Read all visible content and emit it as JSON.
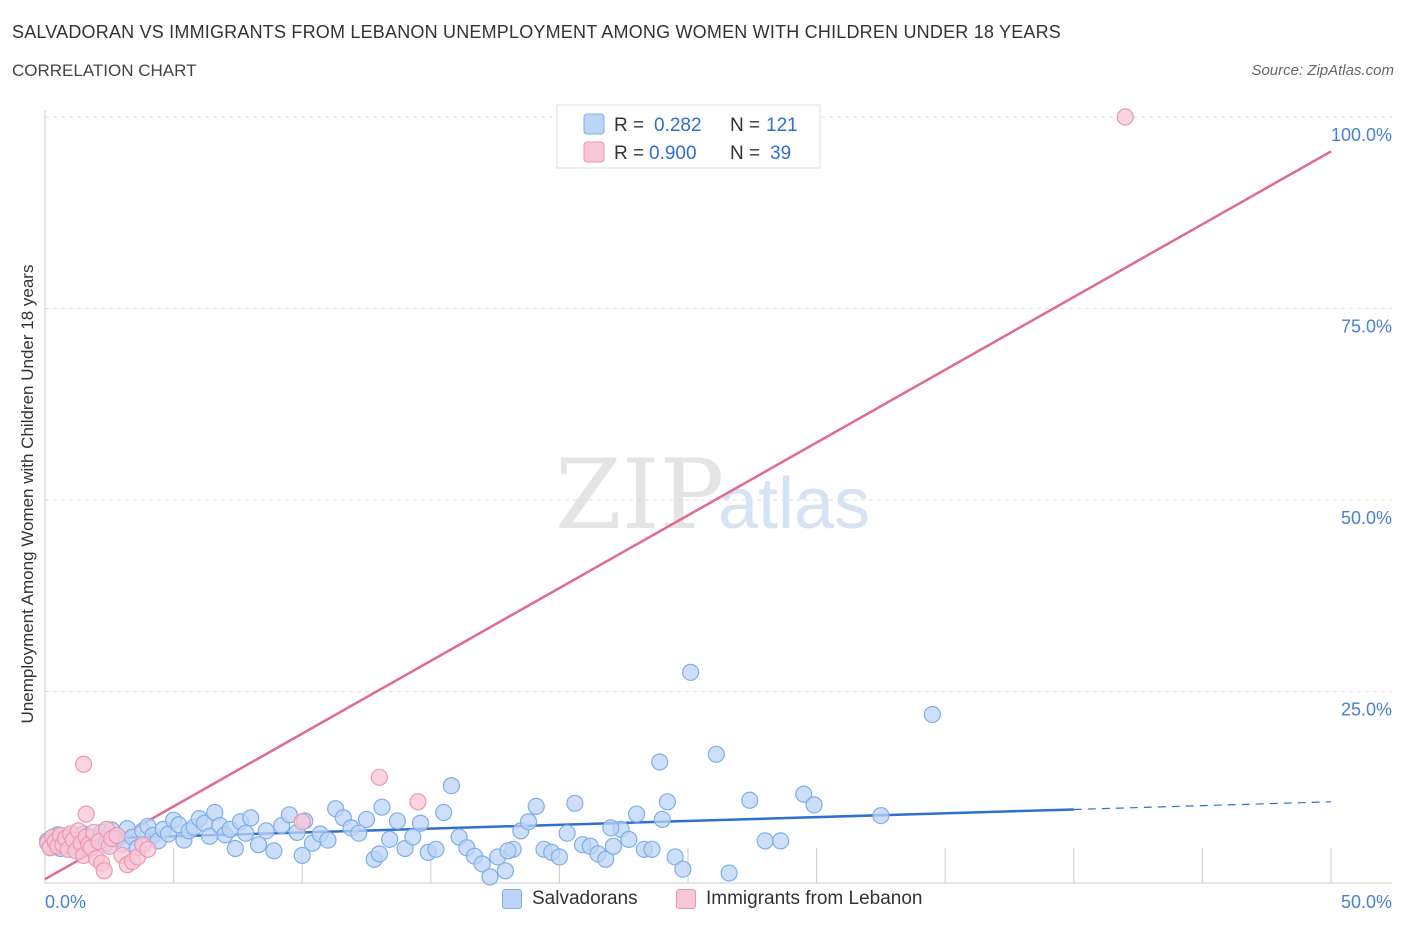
{
  "title": "SALVADORAN VS IMMIGRANTS FROM LEBANON UNEMPLOYMENT AMONG WOMEN WITH CHILDREN UNDER 18 YEARS",
  "subtitle": "CORRELATION CHART",
  "source": "Source: ZipAtlas.com",
  "watermark": {
    "zip": "ZIP",
    "atlas": "atlas"
  },
  "legend_top": [
    {
      "r_label": "R =",
      "r_value": "0.282",
      "n_label": "N =",
      "n_value": "121"
    },
    {
      "r_label": "R =",
      "r_value": "0.900",
      "n_label": "N =",
      "n_value": "39"
    }
  ],
  "legend_bottom": [
    "Salvadorans",
    "Immigrants from Lebanon"
  ],
  "colors": {
    "blue_fill": "#bcd4f5",
    "blue_stroke": "#7faee8",
    "blue_line": "#2f6fd0",
    "pink_fill": "#f8c6d6",
    "pink_stroke": "#eb97b4",
    "pink_line": "#e06a92",
    "tick_label": "#4a80d0",
    "grid": "#dddddd"
  },
  "chart_data": {
    "type": "scatter",
    "title": "SALVADORAN VS IMMIGRANTS FROM LEBANON UNEMPLOYMENT AMONG WOMEN WITH CHILDREN UNDER 18 YEARS",
    "xlabel": "",
    "ylabel": "Unemployment Among Women with Children Under 18 years",
    "xlim": [
      0,
      50
    ],
    "ylim": [
      0,
      100
    ],
    "x_tick_labels": [
      "0.0%",
      "50.0%"
    ],
    "y_tick_labels": [
      {
        "value": 100,
        "label": "100.0%"
      },
      {
        "value": 75,
        "label": "75.0%"
      },
      {
        "value": 50,
        "label": "50.0%"
      },
      {
        "value": 25,
        "label": "25.0%"
      }
    ],
    "grid": true,
    "series": [
      {
        "name": "Salvadorans",
        "R": 0.282,
        "N": 121,
        "trend": {
          "x0": 0,
          "y0": 5.6,
          "x1": 40,
          "y1": 9.6,
          "dash_to_x": 50,
          "dash_to_y": 10.6
        },
        "points": [
          [
            0.1,
            5.5
          ],
          [
            0.2,
            4.8
          ],
          [
            0.3,
            6.0
          ],
          [
            0.4,
            5.2
          ],
          [
            0.5,
            6.3
          ],
          [
            0.6,
            4.5
          ],
          [
            0.7,
            5.8
          ],
          [
            0.8,
            6.1
          ],
          [
            0.9,
            5.0
          ],
          [
            1.0,
            5.6
          ],
          [
            1.1,
            4.9
          ],
          [
            1.2,
            6.2
          ],
          [
            1.3,
            5.3
          ],
          [
            1.4,
            4.6
          ],
          [
            1.5,
            6.4
          ],
          [
            1.6,
            5.1
          ],
          [
            1.7,
            5.9
          ],
          [
            1.8,
            4.7
          ],
          [
            1.9,
            6.0
          ],
          [
            2.0,
            5.4
          ],
          [
            2.2,
            6.6
          ],
          [
            2.4,
            5.2
          ],
          [
            2.6,
            6.9
          ],
          [
            2.8,
            5.8
          ],
          [
            3.0,
            5.1
          ],
          [
            3.2,
            7.1
          ],
          [
            3.4,
            6.0
          ],
          [
            3.6,
            4.6
          ],
          [
            3.8,
            6.8
          ],
          [
            4.0,
            7.4
          ],
          [
            4.2,
            6.2
          ],
          [
            4.4,
            5.5
          ],
          [
            4.6,
            7.0
          ],
          [
            4.8,
            6.4
          ],
          [
            5.0,
            8.2
          ],
          [
            5.2,
            7.6
          ],
          [
            5.4,
            5.6
          ],
          [
            5.6,
            6.8
          ],
          [
            5.8,
            7.3
          ],
          [
            6.0,
            8.4
          ],
          [
            6.2,
            7.8
          ],
          [
            6.4,
            6.1
          ],
          [
            6.6,
            9.2
          ],
          [
            6.8,
            7.5
          ],
          [
            7.0,
            6.3
          ],
          [
            7.2,
            7.0
          ],
          [
            7.4,
            4.5
          ],
          [
            7.6,
            8.0
          ],
          [
            7.8,
            6.5
          ],
          [
            8.0,
            8.5
          ],
          [
            8.3,
            5.0
          ],
          [
            8.6,
            6.8
          ],
          [
            8.9,
            4.2
          ],
          [
            9.2,
            7.5
          ],
          [
            9.5,
            8.9
          ],
          [
            9.8,
            6.6
          ],
          [
            10.1,
            8.1
          ],
          [
            10.4,
            5.2
          ],
          [
            10.7,
            6.4
          ],
          [
            11.0,
            5.6
          ],
          [
            11.3,
            9.7
          ],
          [
            11.6,
            8.5
          ],
          [
            11.9,
            7.2
          ],
          [
            12.2,
            6.5
          ],
          [
            12.5,
            8.3
          ],
          [
            12.8,
            3.1
          ],
          [
            13.1,
            9.9
          ],
          [
            13.4,
            5.7
          ],
          [
            13.7,
            8.1
          ],
          [
            14.0,
            4.5
          ],
          [
            14.3,
            6.0
          ],
          [
            14.6,
            7.8
          ],
          [
            14.9,
            4.0
          ],
          [
            15.2,
            4.4
          ],
          [
            15.5,
            9.2
          ],
          [
            15.8,
            12.7
          ],
          [
            16.1,
            6.0
          ],
          [
            16.4,
            4.6
          ],
          [
            16.7,
            3.5
          ],
          [
            17.0,
            2.5
          ],
          [
            17.3,
            0.8
          ],
          [
            17.6,
            3.4
          ],
          [
            17.9,
            1.6
          ],
          [
            18.2,
            4.4
          ],
          [
            18.5,
            6.8
          ],
          [
            18.8,
            8.0
          ],
          [
            19.1,
            10.0
          ],
          [
            19.4,
            4.4
          ],
          [
            19.7,
            4.0
          ],
          [
            20.0,
            3.4
          ],
          [
            20.3,
            6.5
          ],
          [
            20.6,
            10.4
          ],
          [
            20.9,
            5.0
          ],
          [
            21.2,
            4.8
          ],
          [
            21.5,
            3.8
          ],
          [
            21.8,
            3.1
          ],
          [
            22.1,
            4.8
          ],
          [
            22.4,
            7.0
          ],
          [
            22.7,
            5.7
          ],
          [
            23.0,
            9.0
          ],
          [
            23.3,
            4.4
          ],
          [
            23.6,
            4.4
          ],
          [
            23.9,
            15.8
          ],
          [
            24.2,
            10.6
          ],
          [
            24.5,
            3.4
          ],
          [
            24.8,
            1.8
          ],
          [
            25.1,
            27.5
          ],
          [
            26.1,
            16.8
          ],
          [
            26.6,
            1.3
          ],
          [
            27.4,
            10.8
          ],
          [
            28.0,
            5.5
          ],
          [
            28.6,
            5.5
          ],
          [
            29.5,
            11.6
          ],
          [
            29.9,
            10.2
          ],
          [
            32.5,
            8.8
          ],
          [
            34.5,
            22.0
          ],
          [
            18.0,
            4.2
          ],
          [
            22.0,
            7.2
          ],
          [
            24.0,
            8.3
          ],
          [
            10.0,
            3.6
          ],
          [
            13.0,
            3.8
          ]
        ]
      },
      {
        "name": "Immigrants from Lebanon",
        "R": 0.9,
        "N": 39,
        "trend": {
          "x0": 0,
          "y0": 0.5,
          "x1": 50,
          "y1": 95.5
        },
        "points": [
          [
            0.1,
            5.2
          ],
          [
            0.2,
            4.6
          ],
          [
            0.3,
            6.0
          ],
          [
            0.4,
            5.4
          ],
          [
            0.5,
            4.8
          ],
          [
            0.6,
            6.2
          ],
          [
            0.7,
            5.0
          ],
          [
            0.8,
            5.8
          ],
          [
            0.9,
            4.4
          ],
          [
            1.0,
            6.4
          ],
          [
            1.1,
            5.6
          ],
          [
            1.2,
            4.2
          ],
          [
            1.3,
            6.8
          ],
          [
            1.4,
            5.2
          ],
          [
            1.5,
            3.6
          ],
          [
            1.6,
            6.0
          ],
          [
            1.7,
            5.0
          ],
          [
            1.8,
            4.6
          ],
          [
            1.9,
            6.6
          ],
          [
            2.0,
            3.2
          ],
          [
            2.1,
            5.4
          ],
          [
            2.2,
            2.6
          ],
          [
            2.3,
            1.6
          ],
          [
            2.4,
            7.0
          ],
          [
            2.5,
            4.8
          ],
          [
            2.6,
            5.8
          ],
          [
            2.8,
            6.2
          ],
          [
            3.0,
            3.6
          ],
          [
            3.2,
            2.4
          ],
          [
            3.4,
            2.8
          ],
          [
            3.6,
            3.4
          ],
          [
            3.8,
            5.0
          ],
          [
            4.0,
            4.4
          ],
          [
            1.5,
            15.5
          ],
          [
            1.6,
            9.0
          ],
          [
            10.0,
            8.0
          ],
          [
            13.0,
            13.8
          ],
          [
            14.5,
            10.6
          ],
          [
            42.0,
            100.0
          ]
        ]
      }
    ]
  }
}
